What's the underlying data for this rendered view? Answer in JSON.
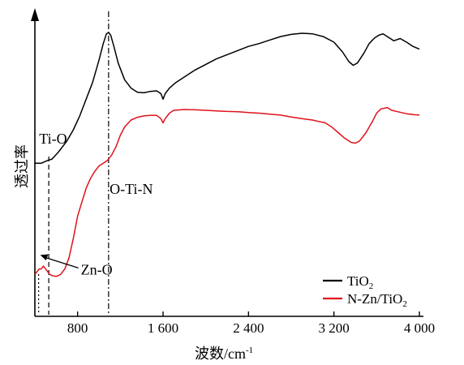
{
  "chart_data": {
    "type": "line",
    "xlabel": "波数/cm",
    "xlabel_sup": "-1",
    "ylabel": "透过率",
    "x_ticks": [
      {
        "value": 800,
        "label": "800"
      },
      {
        "value": 1600,
        "label": "1 600"
      },
      {
        "value": 2400,
        "label": "2 400"
      },
      {
        "value": 3200,
        "label": "3 200"
      },
      {
        "value": 4000,
        "label": "4 000"
      }
    ],
    "xlim": [
      400,
      4000
    ],
    "ylim": [
      0,
      100
    ],
    "grid": false,
    "legend_position": "bottom-right",
    "reference_lines": [
      {
        "x": 1090,
        "style": "dash-dot"
      },
      {
        "x": 530,
        "style": "dashed"
      },
      {
        "x": 435,
        "style": "dotted"
      }
    ],
    "annotations": [
      {
        "text": "Ti-O",
        "x": 440,
        "y": 60
      },
      {
        "text": "O-Ti-N",
        "x": 1100,
        "y": 42
      },
      {
        "text": "Zn-O",
        "x": 830,
        "y": 13
      }
    ],
    "series": [
      {
        "name": "TiO",
        "name_sub": "2",
        "color": "#000000",
        "points": [
          [
            400,
            53
          ],
          [
            460,
            53
          ],
          [
            520,
            54
          ],
          [
            560,
            54.5
          ],
          [
            620,
            57
          ],
          [
            700,
            61
          ],
          [
            760,
            65
          ],
          [
            820,
            70
          ],
          [
            880,
            76
          ],
          [
            940,
            82
          ],
          [
            1000,
            90
          ],
          [
            1040,
            96
          ],
          [
            1070,
            99.5
          ],
          [
            1090,
            100
          ],
          [
            1110,
            99
          ],
          [
            1140,
            95
          ],
          [
            1180,
            89
          ],
          [
            1240,
            83
          ],
          [
            1300,
            80
          ],
          [
            1360,
            78.5
          ],
          [
            1420,
            78.3
          ],
          [
            1480,
            78.8
          ],
          [
            1540,
            79
          ],
          [
            1580,
            78
          ],
          [
            1600,
            76
          ],
          [
            1620,
            78
          ],
          [
            1660,
            80
          ],
          [
            1720,
            82
          ],
          [
            1800,
            84
          ],
          [
            1900,
            86.5
          ],
          [
            2000,
            88.5
          ],
          [
            2100,
            90.5
          ],
          [
            2200,
            92
          ],
          [
            2300,
            93.5
          ],
          [
            2400,
            95
          ],
          [
            2500,
            96
          ],
          [
            2600,
            97.3
          ],
          [
            2700,
            98.5
          ],
          [
            2800,
            99.3
          ],
          [
            2900,
            99.7
          ],
          [
            3000,
            99.5
          ],
          [
            3100,
            98.5
          ],
          [
            3200,
            96.5
          ],
          [
            3280,
            93
          ],
          [
            3340,
            89.5
          ],
          [
            3380,
            88.2
          ],
          [
            3420,
            89
          ],
          [
            3480,
            92.5
          ],
          [
            3530,
            96
          ],
          [
            3580,
            98
          ],
          [
            3620,
            99
          ],
          [
            3660,
            99.5
          ],
          [
            3700,
            98.5
          ],
          [
            3760,
            97
          ],
          [
            3820,
            97.8
          ],
          [
            3880,
            96.5
          ],
          [
            3940,
            95
          ],
          [
            4000,
            94
          ]
        ]
      },
      {
        "name": "N-Zn/TiO",
        "name_sub": "2",
        "color": "#e0121b",
        "points": [
          [
            400,
            13
          ],
          [
            420,
            14
          ],
          [
            440,
            15
          ],
          [
            460,
            15
          ],
          [
            480,
            16
          ],
          [
            500,
            15
          ],
          [
            520,
            14
          ],
          [
            540,
            13
          ],
          [
            570,
            12.5
          ],
          [
            600,
            12.3
          ],
          [
            640,
            13
          ],
          [
            680,
            15
          ],
          [
            720,
            19
          ],
          [
            760,
            26
          ],
          [
            800,
            34
          ],
          [
            840,
            39
          ],
          [
            880,
            44
          ],
          [
            920,
            47.5
          ],
          [
            960,
            50
          ],
          [
            1000,
            52
          ],
          [
            1040,
            53
          ],
          [
            1080,
            54
          ],
          [
            1120,
            56
          ],
          [
            1160,
            59
          ],
          [
            1200,
            63
          ],
          [
            1240,
            66
          ],
          [
            1300,
            68.5
          ],
          [
            1360,
            69.5
          ],
          [
            1420,
            70
          ],
          [
            1480,
            70.2
          ],
          [
            1540,
            70.2
          ],
          [
            1580,
            69
          ],
          [
            1600,
            67.5
          ],
          [
            1620,
            69
          ],
          [
            1660,
            71
          ],
          [
            1700,
            72
          ],
          [
            1800,
            72.3
          ],
          [
            1900,
            72.2
          ],
          [
            2000,
            72
          ],
          [
            2100,
            71.8
          ],
          [
            2200,
            71.6
          ],
          [
            2300,
            71.5
          ],
          [
            2400,
            71.2
          ],
          [
            2500,
            71
          ],
          [
            2600,
            70.6
          ],
          [
            2700,
            70.3
          ],
          [
            2800,
            69.6
          ],
          [
            2900,
            69
          ],
          [
            3000,
            68.5
          ],
          [
            3060,
            68
          ],
          [
            3120,
            67.5
          ],
          [
            3180,
            66
          ],
          [
            3240,
            64
          ],
          [
            3300,
            62
          ],
          [
            3360,
            60.5
          ],
          [
            3400,
            60.2
          ],
          [
            3440,
            61
          ],
          [
            3500,
            64
          ],
          [
            3560,
            68
          ],
          [
            3600,
            71
          ],
          [
            3640,
            72.5
          ],
          [
            3700,
            73
          ],
          [
            3740,
            72
          ],
          [
            3800,
            71.5
          ],
          [
            3880,
            70.8
          ],
          [
            3940,
            70.5
          ],
          [
            4000,
            70.3
          ]
        ]
      }
    ]
  }
}
